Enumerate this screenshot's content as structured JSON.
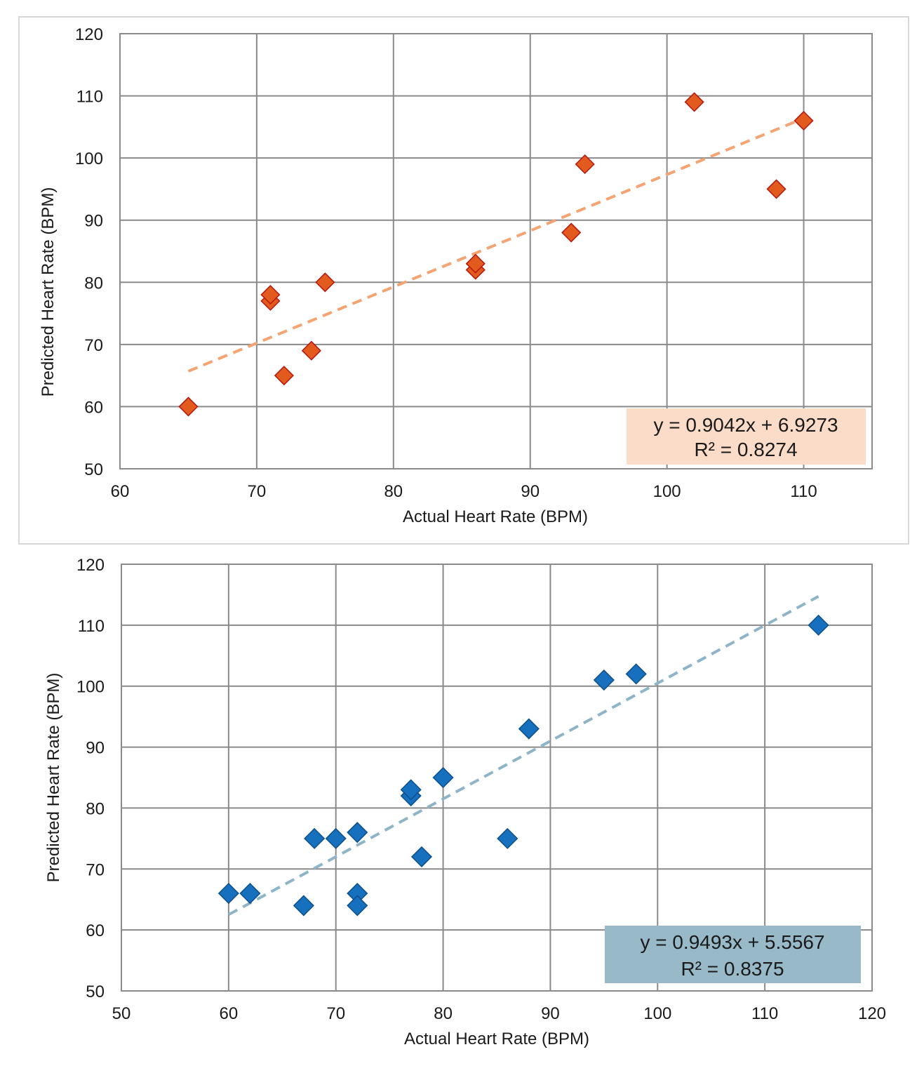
{
  "chart_data": [
    {
      "type": "scatter",
      "xlabel": "Actual Heart Rate (BPM)",
      "ylabel": "Predicted Heart Rate (BPM)",
      "xlim": [
        60,
        115
      ],
      "ylim": [
        50,
        120
      ],
      "xticks": [
        60,
        70,
        80,
        90,
        100,
        110
      ],
      "yticks": [
        50,
        60,
        70,
        80,
        90,
        100,
        110,
        120
      ],
      "grid": true,
      "series": [
        {
          "name": "data",
          "marker": "diamond",
          "color": "#e35a1e",
          "edge_color": "#b5170e",
          "points": [
            [
              65,
              60
            ],
            [
              71,
              77
            ],
            [
              71,
              78
            ],
            [
              72,
              65
            ],
            [
              74,
              69
            ],
            [
              75,
              80
            ],
            [
              86,
              82
            ],
            [
              86,
              83
            ],
            [
              93,
              88
            ],
            [
              94,
              99
            ],
            [
              102,
              109
            ],
            [
              108,
              95
            ],
            [
              110,
              106
            ]
          ]
        }
      ],
      "trendline": {
        "slope": 0.9042,
        "intercept": 6.9273,
        "x_range": [
          65,
          110
        ],
        "color": "#f4a472",
        "style": "dashed"
      },
      "equation": "y = 0.9042x + 6.9273",
      "r_squared": "R² = 0.8274",
      "equation_box_color": "#fbdcc8",
      "legend_position": "bottom-right"
    },
    {
      "type": "scatter",
      "xlabel": "Actual Heart Rate (BPM)",
      "ylabel": "Predicted Heart Rate (BPM)",
      "xlim": [
        50,
        120
      ],
      "ylim": [
        50,
        120
      ],
      "xticks": [
        50,
        60,
        70,
        80,
        90,
        100,
        110,
        120
      ],
      "yticks": [
        50,
        60,
        70,
        80,
        90,
        100,
        110,
        120
      ],
      "grid": true,
      "series": [
        {
          "name": "data",
          "marker": "diamond",
          "color": "#1670be",
          "edge_color": "#0d4f8a",
          "points": [
            [
              60,
              66
            ],
            [
              62,
              66
            ],
            [
              67,
              64
            ],
            [
              68,
              75
            ],
            [
              70,
              75
            ],
            [
              72,
              76
            ],
            [
              72,
              66
            ],
            [
              72,
              64
            ],
            [
              77,
              82
            ],
            [
              77,
              83
            ],
            [
              78,
              72
            ],
            [
              80,
              85
            ],
            [
              86,
              75
            ],
            [
              88,
              93
            ],
            [
              95,
              101
            ],
            [
              98,
              102
            ],
            [
              115,
              110
            ]
          ]
        }
      ],
      "trendline": {
        "slope": 0.9493,
        "intercept": 5.5567,
        "x_range": [
          60,
          115
        ],
        "color": "#8eb4c8",
        "style": "dashed"
      },
      "equation": "y = 0.9493x + 5.5567",
      "r_squared": "R² = 0.8375",
      "equation_box_color": "#98b9c8",
      "legend_position": "bottom-right"
    }
  ]
}
